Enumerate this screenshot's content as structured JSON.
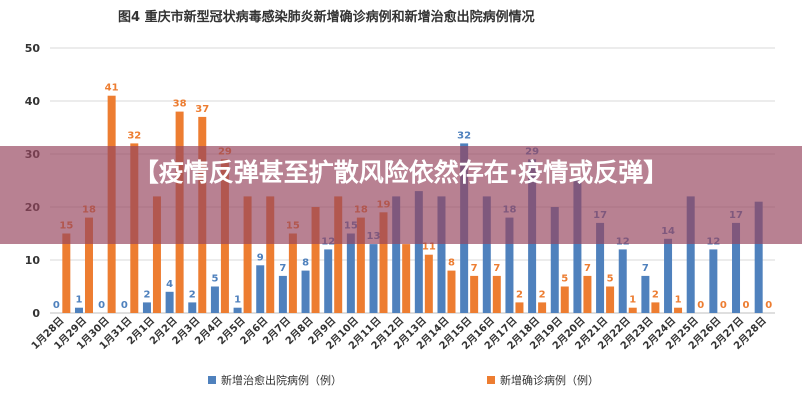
{
  "banner": {
    "headline": "【疫情反弹甚至扩散风险依然存在·疫情或反弹】"
  },
  "chart_data": {
    "type": "bar",
    "title": "图4    重庆市新型冠状病毒感染肺炎新增确诊病例和新增治愈出院病例情况",
    "categories": [
      "1月28日",
      "1月29日",
      "1月30日",
      "1月31日",
      "2月1日",
      "2月2日",
      "2月3日",
      "2月4日",
      "2月5日",
      "2月6日",
      "2月7日",
      "2月8日",
      "2月9日",
      "2月10日",
      "2月11日",
      "2月12日",
      "2月13日",
      "2月14日",
      "2月15日",
      "2月16日",
      "2月17日",
      "2月18日",
      "2月19日",
      "2月20日",
      "2月21日",
      "2月22日",
      "2月23日",
      "2月24日",
      "2月25日",
      "2月26日",
      "2月27日",
      "2月28日"
    ],
    "ylim": [
      0,
      50
    ],
    "yticks": [
      0,
      10,
      20,
      30,
      40,
      50
    ],
    "grid": true,
    "legend_position": "bottom",
    "series": [
      {
        "name": "新增治愈出院病例（例）",
        "color": "#4f81bd",
        "values": [
          0,
          1,
          0,
          0,
          2,
          4,
          2,
          5,
          1,
          9,
          7,
          8,
          12,
          15,
          13,
          22,
          23,
          22,
          32,
          22,
          18,
          29,
          20,
          25,
          17,
          12,
          7,
          14,
          22,
          12,
          17,
          21
        ],
        "labels": [
          "0",
          "1",
          "0",
          "0",
          "2",
          "4",
          "2",
          "5",
          "1",
          "9",
          "7",
          "8",
          "12",
          "15",
          "13",
          "",
          "",
          "",
          "32",
          "",
          "18",
          "29",
          "",
          "",
          "17",
          "12",
          "7",
          "14",
          "",
          "12",
          "17",
          ""
        ]
      },
      {
        "name": "新增确诊病例（例）",
        "color": "#ed7d31",
        "values": [
          15,
          18,
          41,
          32,
          22,
          38,
          37,
          29,
          22,
          22,
          15,
          20,
          22,
          18,
          19,
          13,
          11,
          8,
          7,
          7,
          2,
          2,
          5,
          7,
          5,
          1,
          2,
          1,
          0,
          0,
          0,
          0
        ],
        "labels": [
          "15",
          "18",
          "41",
          "32",
          "",
          "38",
          "37",
          "29",
          "",
          "",
          "15",
          "",
          "",
          "18",
          "19",
          "",
          "11",
          "8",
          "7",
          "7",
          "2",
          "2",
          "5",
          "7",
          "5",
          "1",
          "2",
          "1",
          "0",
          "0",
          "0",
          "0"
        ]
      }
    ]
  }
}
